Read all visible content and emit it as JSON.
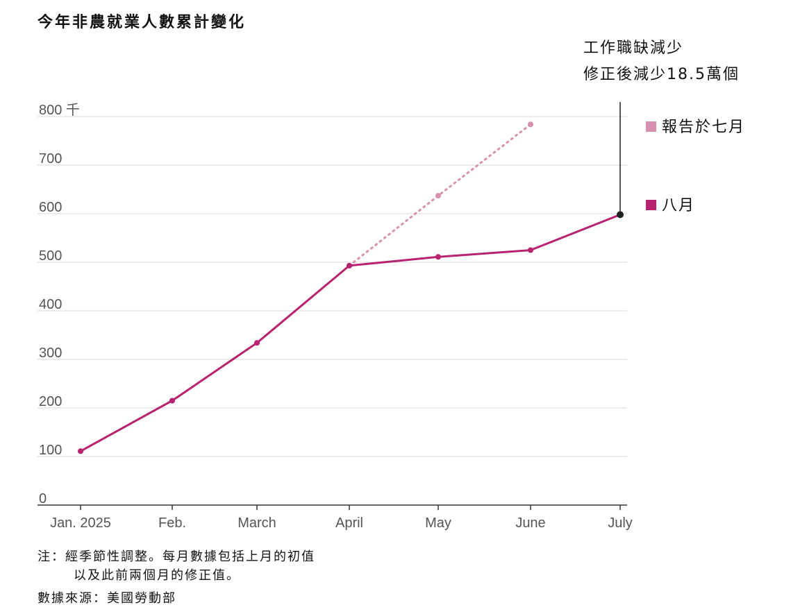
{
  "title": "今年非農就業人數累計變化",
  "chart_data": {
    "type": "line",
    "categories": [
      "Jan. 2025",
      "Feb.",
      "March",
      "April",
      "May",
      "June",
      "July"
    ],
    "y_unit_label": "800 千",
    "ylim": [
      0,
      800
    ],
    "yticks": [
      0,
      100,
      200,
      300,
      400,
      500,
      600,
      700,
      800
    ],
    "ytick_labels": [
      "0",
      "100",
      "200",
      "300",
      "400",
      "500",
      "600",
      "700",
      "800 千"
    ],
    "grid": true,
    "series": [
      {
        "name": "報告於七月",
        "color": "#d98fb0",
        "style": "dotted",
        "values": [
          111,
          215,
          334,
          493,
          637,
          784,
          null
        ]
      },
      {
        "name": "八月",
        "color": "#b8236f",
        "style": "solid",
        "values": [
          111,
          215,
          334,
          493,
          511,
          525,
          598
        ]
      }
    ],
    "annotation_lines": [
      "工作職缺減少",
      "修正後減少18.5萬個"
    ],
    "legend_position": "right"
  },
  "notes": {
    "line1": "注：經季節性調整。每月數據包括上月的初值",
    "line2": "以及此前兩個月的修正值。",
    "source": "數據來源：美國勞動部"
  }
}
